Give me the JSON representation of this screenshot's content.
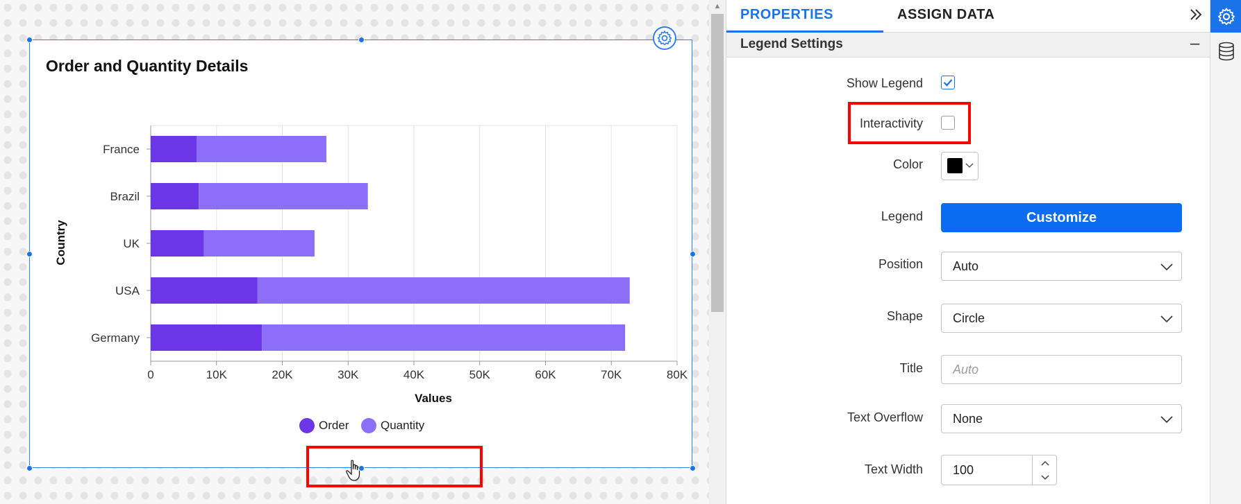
{
  "canvas": {
    "widget": {
      "title": "Order and Quantity Details"
    }
  },
  "chart_data": {
    "type": "bar",
    "orientation": "horizontal",
    "stacked": true,
    "title": "Order and Quantity Details",
    "xlabel": "Values",
    "ylabel": "Country",
    "categories": [
      "France",
      "Brazil",
      "UK",
      "USA",
      "Germany"
    ],
    "series": [
      {
        "name": "Order",
        "values": [
          7000,
          7300,
          8100,
          16200,
          16900
        ],
        "color": "#6d35e8"
      },
      {
        "name": "Quantity",
        "values": [
          19700,
          25700,
          16800,
          56600,
          55200
        ],
        "color": "#8c6ef8"
      }
    ],
    "xlim": [
      0,
      80000
    ],
    "xticks": [
      "0",
      "10K",
      "20K",
      "30K",
      "40K",
      "50K",
      "60K",
      "70K",
      "80K"
    ],
    "grid": "vertical",
    "legend": "bottom"
  },
  "panel": {
    "tabs": {
      "properties": "PROPERTIES",
      "assign_data": "ASSIGN DATA"
    },
    "section_title": "Legend Settings",
    "show_legend_label": "Show Legend",
    "show_legend_checked": true,
    "interactivity_label": "Interactivity",
    "interactivity_checked": false,
    "color_label": "Color",
    "color_value": "#000000",
    "legend_label": "Legend",
    "customize_label": "Customize",
    "position_label": "Position",
    "position_value": "Auto",
    "shape_label": "Shape",
    "shape_value": "Circle",
    "title_label": "Title",
    "title_placeholder": "Auto",
    "text_overflow_label": "Text Overflow",
    "text_overflow_value": "None",
    "text_width_label": "Text Width",
    "text_width_value": "100"
  },
  "icons": {
    "widget_settings": "gear-icon",
    "collapse_panel": "double-chevron-right-icon",
    "section_collapse": "minus-icon",
    "strip_settings": "gear-icon",
    "strip_data": "database-icon",
    "cursor": "hand-pointer-icon"
  },
  "colors": {
    "accent": "#1a73e8",
    "highlight": "#ff0000"
  }
}
